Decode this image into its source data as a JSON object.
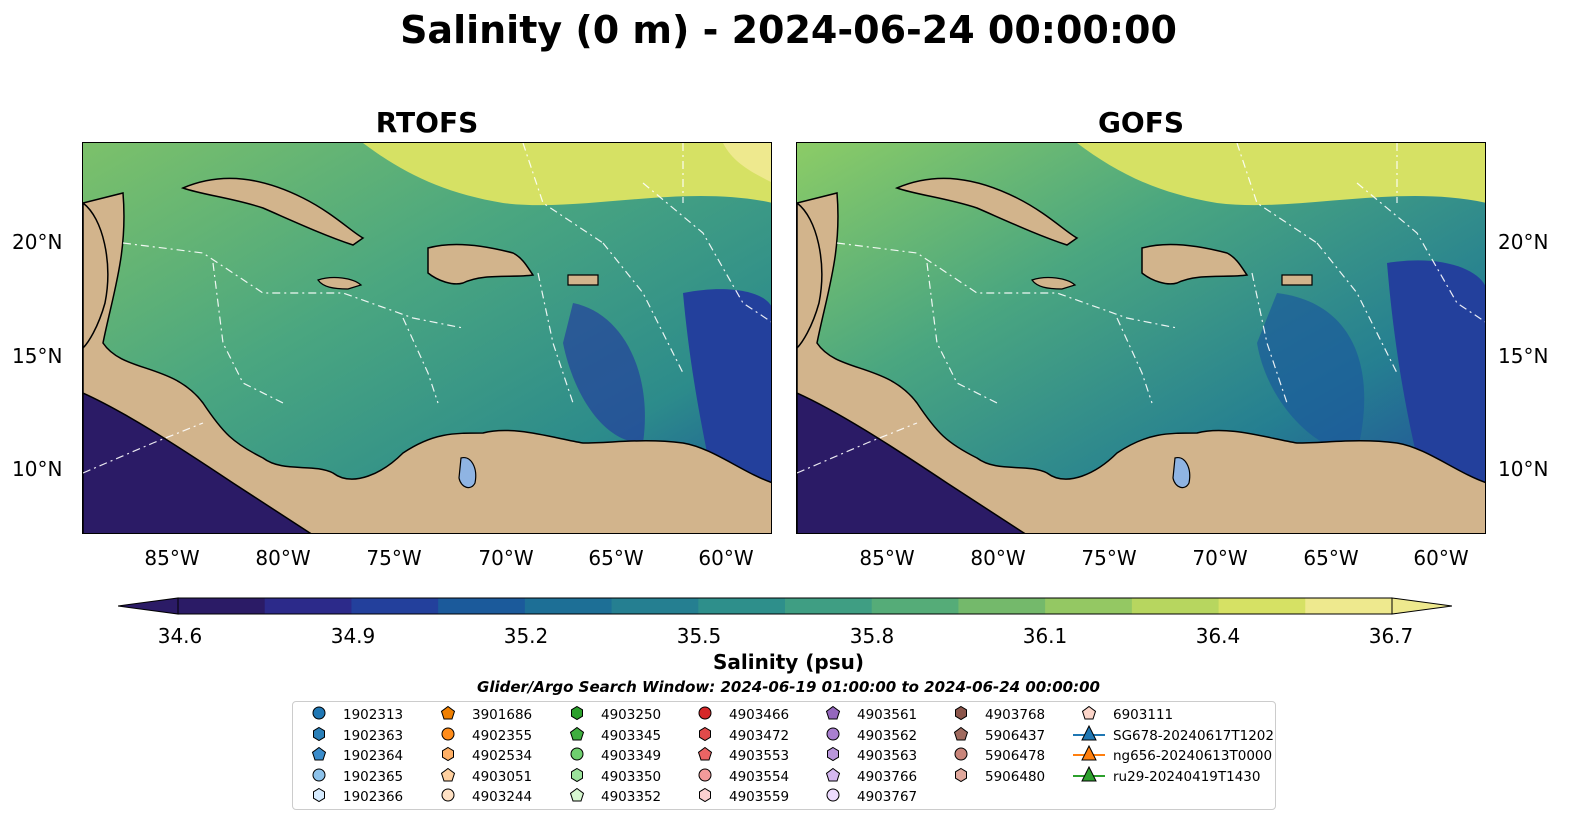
{
  "title": "Salinity (0 m) - 2024-06-24 00:00:00",
  "panels": [
    {
      "title": "RTOFS"
    },
    {
      "title": "GOFS"
    }
  ],
  "lat_labels": [
    "20°N",
    "15°N",
    "10°N"
  ],
  "lon_labels": [
    "85°W",
    "80°W",
    "75°W",
    "70°W",
    "65°W",
    "60°W"
  ],
  "colorbar": {
    "label": "Salinity (psu)",
    "ticks": [
      "34.6",
      "34.9",
      "35.2",
      "35.5",
      "35.8",
      "36.1",
      "36.4",
      "36.7"
    ],
    "colors": [
      "#2b1b66",
      "#2c2a8a",
      "#23409c",
      "#1b5a9b",
      "#1d6f96",
      "#257f91",
      "#2e8f8b",
      "#3f9e83",
      "#55ac78",
      "#74b96b",
      "#94c863",
      "#b7d65f",
      "#d6e164",
      "#eee98e"
    ]
  },
  "search_window": "Glider/Argo Search Window: 2024-06-19 01:00:00 to 2024-06-24 00:00:00",
  "colors": {
    "land": "#d2b48c",
    "lake": "#8fb4e3",
    "low_salinity": "#2b1b66",
    "mid_salinity": "#3f9e83",
    "high_salinity": "#eee98e"
  },
  "legend": [
    [
      {
        "label": "1902313",
        "marker": "circle",
        "color": "#1f77b4"
      },
      {
        "label": "1902363",
        "marker": "hexagon",
        "color": "#2a7fb8"
      },
      {
        "label": "1902364",
        "marker": "pentagon",
        "color": "#3a8ccb"
      },
      {
        "label": "1902365",
        "marker": "circle",
        "color": "#8dc2ea"
      },
      {
        "label": "1902366",
        "marker": "hexagon",
        "color": "#d7ecff"
      }
    ],
    [
      {
        "label": "3901686",
        "marker": "pentagon",
        "color": "#f07f00"
      },
      {
        "label": "4902355",
        "marker": "circle",
        "color": "#ff8c1a"
      },
      {
        "label": "4902534",
        "marker": "hexagon",
        "color": "#ffb066"
      },
      {
        "label": "4903051",
        "marker": "pentagon",
        "color": "#ffd0a0"
      },
      {
        "label": "4903244",
        "marker": "circle",
        "color": "#ffe1c4"
      }
    ],
    [
      {
        "label": "4903250",
        "marker": "hexagon",
        "color": "#2ca02c"
      },
      {
        "label": "4903345",
        "marker": "pentagon",
        "color": "#3fae3f"
      },
      {
        "label": "4903349",
        "marker": "circle",
        "color": "#6fcf6f"
      },
      {
        "label": "4903350",
        "marker": "hexagon",
        "color": "#9be29b"
      },
      {
        "label": "4903352",
        "marker": "pentagon",
        "color": "#d7f7d1"
      }
    ],
    [
      {
        "label": "4903466",
        "marker": "circle",
        "color": "#d62728"
      },
      {
        "label": "4903472",
        "marker": "hexagon",
        "color": "#e04a4a"
      },
      {
        "label": "4903553",
        "marker": "pentagon",
        "color": "#ea6464"
      },
      {
        "label": "4903554",
        "marker": "circle",
        "color": "#f29a9a"
      },
      {
        "label": "4903559",
        "marker": "hexagon",
        "color": "#fcd0d0"
      }
    ],
    [
      {
        "label": "4903561",
        "marker": "pentagon",
        "color": "#9467bd"
      },
      {
        "label": "4903562",
        "marker": "circle",
        "color": "#a97fd0"
      },
      {
        "label": "4903563",
        "marker": "hexagon",
        "color": "#b996dc"
      },
      {
        "label": "4903766",
        "marker": "pentagon",
        "color": "#d5b8f0"
      },
      {
        "label": "4903767",
        "marker": "circle",
        "color": "#eedcff"
      }
    ],
    [
      {
        "label": "4903768",
        "marker": "hexagon",
        "color": "#8c564b"
      },
      {
        "label": "5906437",
        "marker": "pentagon",
        "color": "#a06a5e"
      },
      {
        "label": "5906478",
        "marker": "circle",
        "color": "#c9857a"
      },
      {
        "label": "5906480",
        "marker": "hexagon",
        "color": "#e0a89c"
      }
    ],
    [
      {
        "label": "6903111",
        "marker": "pentagon",
        "color": "#fcd5c9"
      },
      {
        "label": "SG678-20240617T1202",
        "marker": "triangle",
        "color": "#1f77b4"
      },
      {
        "label": "ng656-20240613T0000",
        "marker": "triangle",
        "color": "#ff7f0e"
      },
      {
        "label": "ru29-20240419T1430",
        "marker": "triangle",
        "color": "#2ca02c"
      }
    ]
  ]
}
